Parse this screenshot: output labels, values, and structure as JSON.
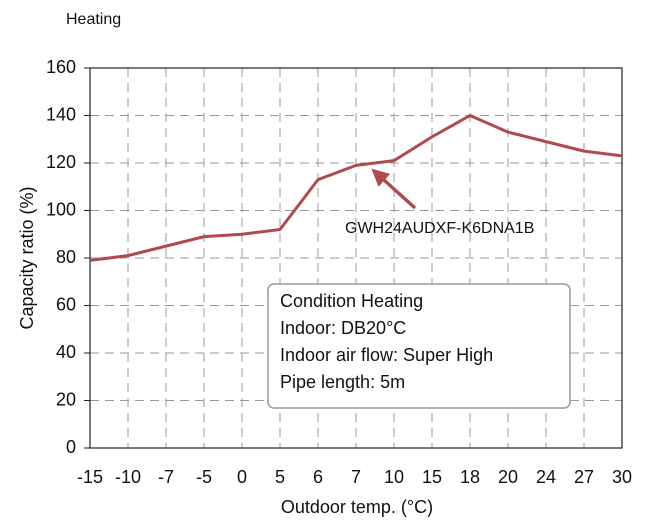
{
  "chart_data": {
    "type": "line",
    "title": "Heating",
    "x_label": "Outdoor temp. (°C)",
    "y_label": "Capacity ratio (%)",
    "categories": [
      "-15",
      "-10",
      "-7",
      "-5",
      "0",
      "5",
      "6",
      "7",
      "10",
      "15",
      "18",
      "20",
      "24",
      "27",
      "30"
    ],
    "series": [
      {
        "name": "GWH24AUDXF-K6DNA1B",
        "color": "#b04a4e",
        "values": [
          79,
          81,
          85,
          89,
          90,
          92,
          113,
          119,
          121,
          131,
          140,
          133,
          129,
          125,
          123
        ]
      }
    ],
    "ylim": [
      0,
      160
    ],
    "yticks": [
      0,
      20,
      40,
      60,
      80,
      100,
      120,
      140,
      160
    ],
    "grid": true,
    "annotation_box": [
      "Condition Heating",
      "Indoor: DB20°C",
      "Indoor air flow: Super High",
      "Pipe length: 5m"
    ]
  }
}
